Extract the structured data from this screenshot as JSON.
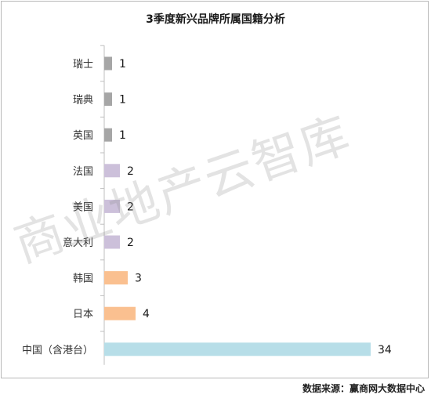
{
  "chart_data": {
    "type": "bar",
    "orientation": "horizontal",
    "title": "3季度新兴品牌所属国籍分析",
    "categories": [
      "瑞士",
      "瑞典",
      "英国",
      "法国",
      "美国",
      "意大利",
      "韩国",
      "日本",
      "中国（含港台）"
    ],
    "values": [
      1,
      1,
      1,
      2,
      2,
      2,
      3,
      4,
      34
    ],
    "bar_colors": [
      "#a6a6a6",
      "#a6a6a6",
      "#a6a6a6",
      "#ccc0da",
      "#ccc0da",
      "#ccc0da",
      "#fac090",
      "#fac090",
      "#b7dee8"
    ],
    "xlim": [
      0,
      34
    ],
    "grid": false,
    "data_labels": true
  },
  "watermark": "商业地产云智库",
  "source": "数据来源：赢商网大数据中心"
}
